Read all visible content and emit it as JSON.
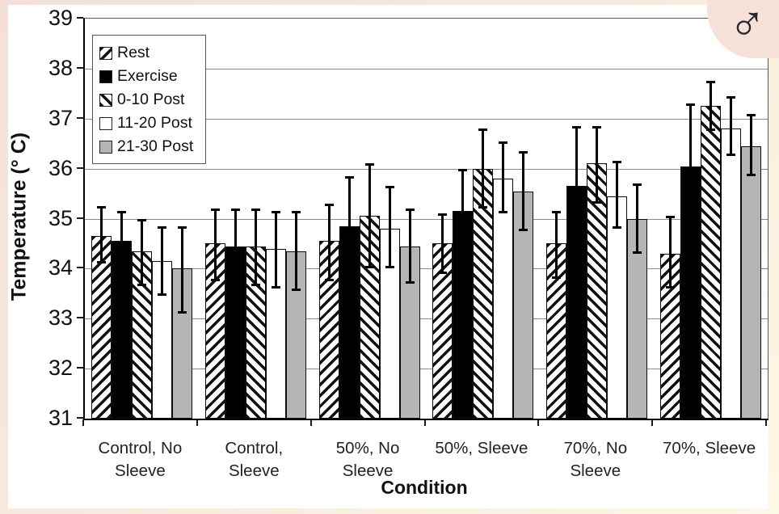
{
  "figure": {
    "badge_glyph": "♂",
    "badge_meaning": "male-symbol"
  },
  "colors": {
    "bar_black": "#000000",
    "bar_gray": "#b5b5b5",
    "bar_white": "#ffffff",
    "gridline": "#8a8a8a",
    "frame_pink": "#f4e0d8",
    "frame_cream": "#fcf8e6",
    "badge_background": "#f5e1d7"
  },
  "chart_data": {
    "type": "bar",
    "title": "",
    "xlabel": "Condition",
    "ylabel": "Temperature (° C)",
    "ylim": [
      31,
      39
    ],
    "yticks": [
      31,
      32,
      33,
      34,
      35,
      36,
      37,
      38,
      39
    ],
    "grid": "horizontal",
    "legend_position": "top-left-inside",
    "error_bars": true,
    "categories": [
      "Control, No Sleeve",
      "Control, Sleeve",
      "50%, No Sleeve",
      "50%, Sleeve",
      "70%, No Sleeve",
      "70%, Sleeve"
    ],
    "series": [
      {
        "name": "Rest",
        "fill": "hatch-up",
        "values": [
          34.65,
          34.5,
          34.55,
          34.5,
          34.5,
          34.3
        ],
        "whisker_high": [
          35.25,
          35.2,
          35.3,
          35.1,
          35.15,
          35.05
        ],
        "whisker_low": [
          34.1,
          33.75,
          33.75,
          33.9,
          33.8,
          33.6
        ]
      },
      {
        "name": "Exercise",
        "fill": "solid-black",
        "values": [
          34.55,
          34.45,
          34.85,
          35.15,
          35.65,
          36.05
        ],
        "whisker_high": [
          35.15,
          35.2,
          35.85,
          36.0,
          36.85,
          37.3
        ],
        "whisker_low": [
          33.95,
          33.7,
          33.85,
          34.3,
          34.45,
          34.8
        ]
      },
      {
        "name": "0-10 Post",
        "fill": "hatch-down",
        "values": [
          34.35,
          34.45,
          35.05,
          36.0,
          36.1,
          37.25
        ],
        "whisker_high": [
          35.0,
          35.2,
          36.1,
          36.8,
          36.85,
          37.75
        ],
        "whisker_low": [
          33.65,
          33.65,
          34.0,
          35.2,
          35.3,
          36.75
        ]
      },
      {
        "name": "11-20 Post",
        "fill": "white",
        "values": [
          34.15,
          34.4,
          34.8,
          35.8,
          35.45,
          36.8
        ],
        "whisker_high": [
          34.85,
          35.15,
          35.65,
          36.55,
          36.15,
          37.45
        ],
        "whisker_low": [
          33.45,
          33.6,
          34.0,
          35.1,
          34.8,
          36.25
        ]
      },
      {
        "name": "21-30 Post",
        "fill": "gray",
        "values": [
          34.0,
          34.35,
          34.45,
          35.55,
          35.0,
          36.45
        ],
        "whisker_high": [
          34.85,
          35.15,
          35.2,
          36.35,
          35.7,
          37.1
        ],
        "whisker_low": [
          33.1,
          33.55,
          33.7,
          34.75,
          34.3,
          35.85
        ]
      }
    ]
  }
}
